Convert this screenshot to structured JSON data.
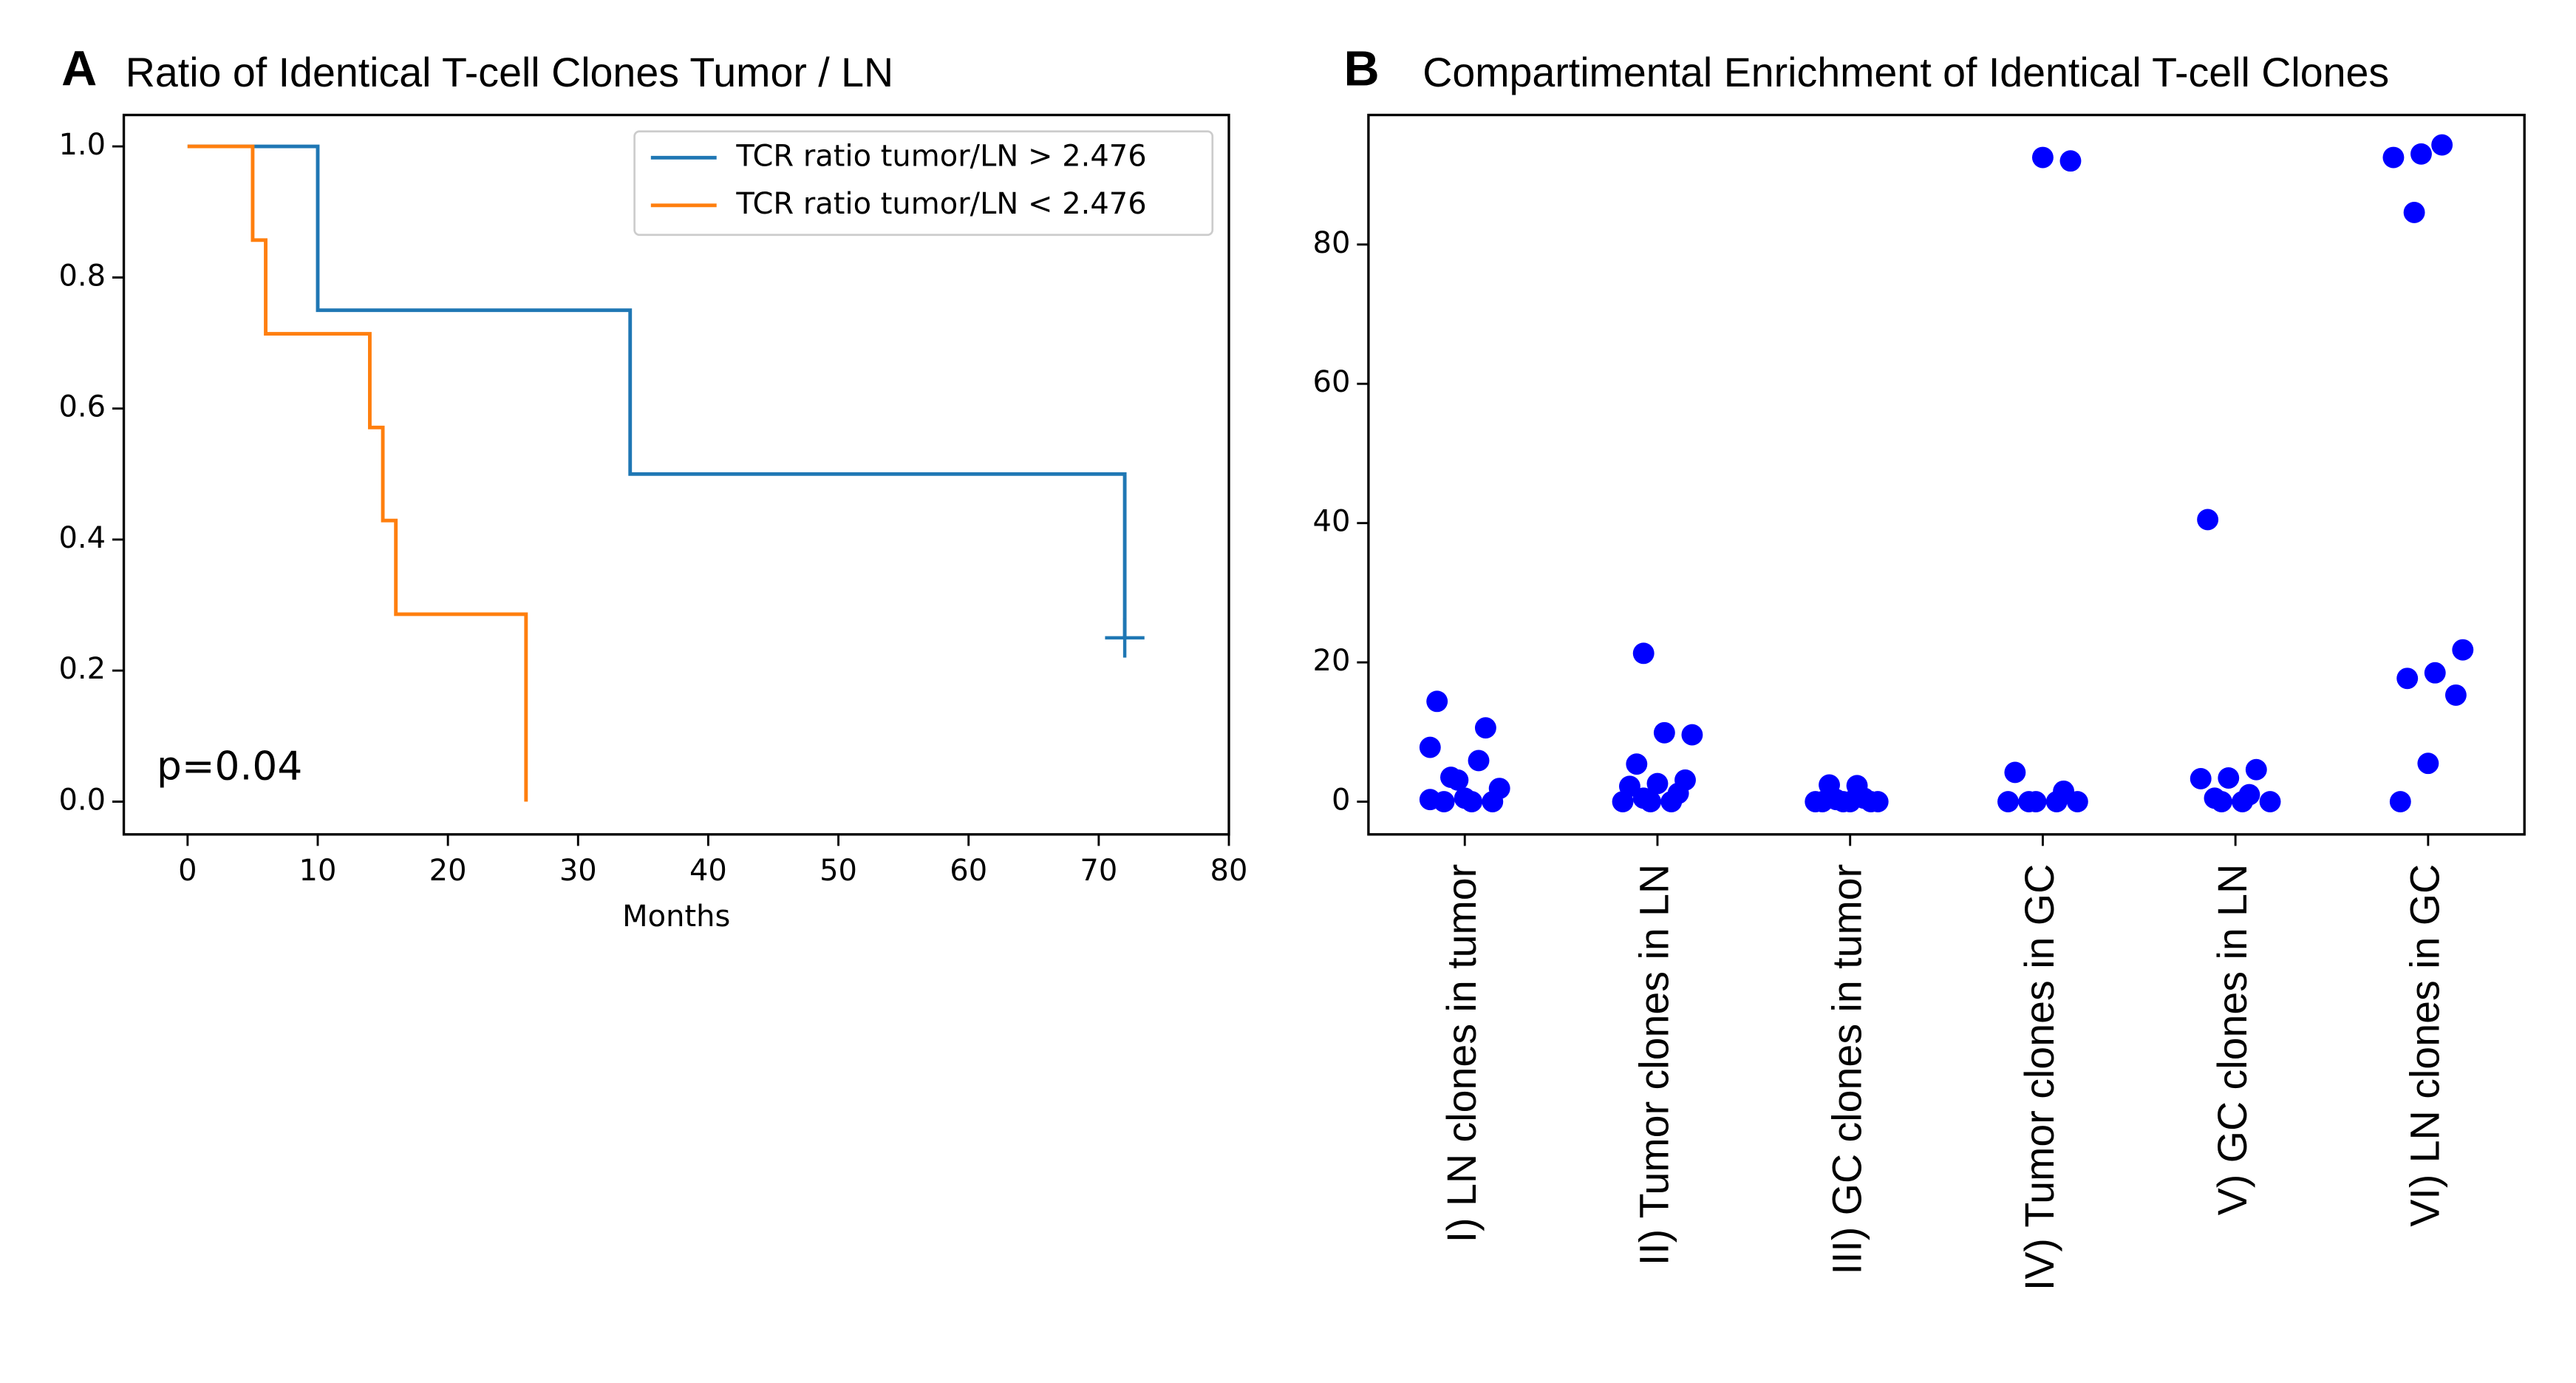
{
  "chart_data": [
    {
      "type": "line",
      "panel_label": "A",
      "title": "Ratio of Identical T-cell Clones Tumor / LN",
      "xlabel": "Months",
      "annotation": "p=0.04",
      "xlim": [
        -4.9,
        80
      ],
      "xticks": [
        0,
        10,
        20,
        30,
        40,
        50,
        60,
        70,
        80
      ],
      "ylim": [
        -0.05,
        1.048
      ],
      "yticks": [
        {
          "value": 0,
          "label": "0.0"
        },
        0.2,
        0.4,
        0.6,
        0.8,
        {
          "value": 1,
          "label": "1.0"
        }
      ],
      "legend": "upper right",
      "series": [
        {
          "name": "TCR ratio tumor/LN > 2.476",
          "color": "#1f77b4",
          "x": [
            0,
            10,
            10,
            34,
            34,
            72,
            72
          ],
          "values": [
            1,
            1,
            0.75,
            0.75,
            0.5,
            0.5,
            0.25
          ],
          "censored_x": [
            72
          ],
          "censored_values": [
            0.25
          ]
        },
        {
          "name": "TCR ratio tumor/LN < 2.476",
          "color": "#ff7f0e",
          "x": [
            0,
            5,
            5,
            6,
            6,
            14,
            14,
            15,
            15,
            16,
            16,
            26,
            26
          ],
          "values": [
            1,
            1,
            0.857,
            0.857,
            0.714,
            0.714,
            0.571,
            0.571,
            0.429,
            0.429,
            0.286,
            0.286,
            0
          ]
        }
      ]
    },
    {
      "type": "strip",
      "panel_label": "B",
      "title": "Compartimental Enrichment of Identical T-cell Clones",
      "categories": [
        "I) LN clones in tumor",
        "II) Tumor clones in LN",
        "III) GC clones in tumor",
        "IV) Tumor clones in GC",
        "V) GC clones in LN",
        "VI) LN clones in GC"
      ],
      "color": "#0000ff",
      "values": [
        [
          7.8,
          5.9,
          3.5,
          1.9,
          0,
          0,
          0,
          0.5,
          14.4,
          10.6,
          3.1,
          0.3
        ],
        [
          21.3,
          9.6,
          9.9,
          5.4,
          3.1,
          2.6,
          2.2,
          1.2,
          0,
          0,
          0,
          0.5
        ],
        [
          2.3,
          2.4,
          0,
          0,
          0,
          0,
          0,
          0,
          0.5,
          0.3
        ],
        [
          92,
          92.5,
          4.2,
          1.5,
          0,
          0,
          0,
          0,
          0
        ],
        [
          40.5,
          4.6,
          3.4,
          3.3,
          1,
          0,
          0,
          0,
          0.5
        ],
        [
          93,
          92.5,
          94.3,
          84.6,
          21.8,
          18.5,
          17.7,
          15.3,
          5.5,
          0
        ]
      ],
      "ylim": [
        -4.7,
        98.6
      ],
      "yticks": [
        0,
        20,
        40,
        60,
        80
      ]
    }
  ]
}
